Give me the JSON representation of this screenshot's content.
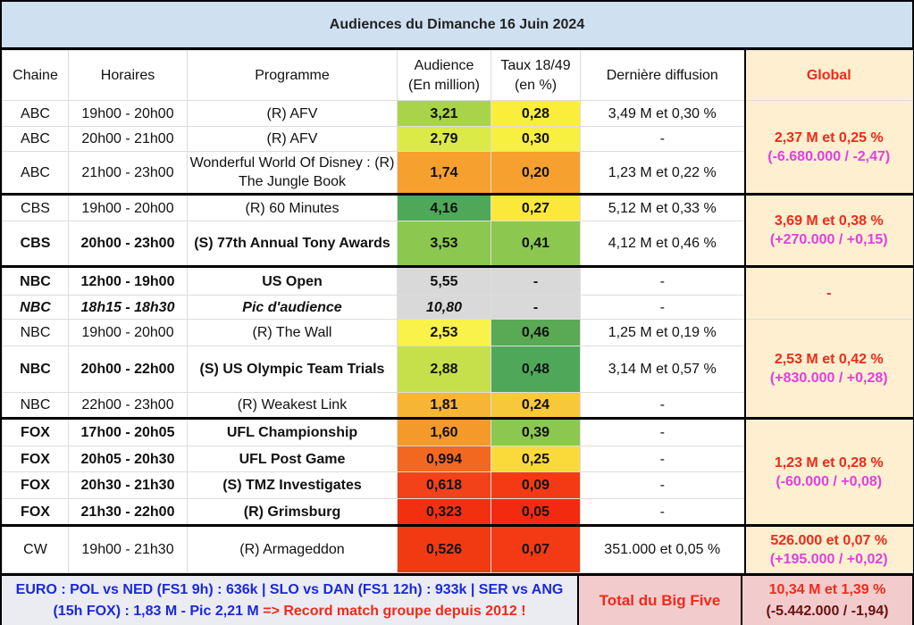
{
  "title": "Audiences du Dimanche 16 Juin 2024",
  "headers": {
    "chaine": "Chaine",
    "horaires": "Horaires",
    "programme": "Programme",
    "audience1": "Audience",
    "audience2": "(En million)",
    "taux1": "Taux 18/49",
    "taux2": "(en %)",
    "derniere": "Dernière diffusion",
    "global": "Global"
  },
  "rows": [
    {
      "chaine": "ABC",
      "horaires": "19h00 - 20h00",
      "programme": "(R) AFV",
      "audience": "3,21",
      "audience_color": "#a9d44a",
      "taux": "0,28",
      "taux_color": "#fbee3a",
      "derniere": "3,49 M et 0,30 %"
    },
    {
      "chaine": "ABC",
      "horaires": "20h00 - 21h00",
      "programme": "(R) AFV",
      "audience": "2,79",
      "audience_color": "#dcea48",
      "taux": "0,30",
      "taux_color": "#f8f040",
      "derniere": "-"
    },
    {
      "chaine": "ABC",
      "horaires": "21h00 - 23h00",
      "programme": "Wonderful World Of Disney : (R) The Jungle Book",
      "audience": "1,74",
      "audience_color": "#f6a030",
      "taux": "0,20",
      "taux_color": "#f6a030",
      "derniere": "1,23 M et 0,22 %"
    },
    {
      "chaine": "CBS",
      "horaires": "19h00 - 20h00",
      "programme": "(R) 60 Minutes",
      "audience": "4,16",
      "audience_color": "#4fa85a",
      "taux": "0,27",
      "taux_color": "#fbe83a",
      "derniere": "5,12 M et 0,33 %"
    },
    {
      "chaine": "CBS",
      "horaires": "20h00 - 23h00",
      "programme": "(S) 77th Annual Tony Awards",
      "audience": "3,53",
      "audience_color": "#8cc850",
      "taux": "0,41",
      "taux_color": "#8cc850",
      "derniere": "4,12 M et 0,46 %",
      "bold": true
    },
    {
      "chaine": "NBC",
      "horaires": "12h00 - 19h00",
      "programme": "US Open",
      "audience": "5,55",
      "audience_color": "#d9d9d9",
      "taux": "-",
      "taux_color": "#d9d9d9",
      "derniere": "-",
      "bold": true
    },
    {
      "chaine": "NBC",
      "horaires": "18h15 - 18h30",
      "programme": "Pic d'audience",
      "audience": "10,80",
      "audience_color": "#d9d9d9",
      "taux": "-",
      "taux_color": "#d9d9d9",
      "derniere": "-",
      "bold": true,
      "italic": true
    },
    {
      "chaine": "NBC",
      "horaires": "19h00 - 20h00",
      "programme": "(R) The Wall",
      "audience": "2,53",
      "audience_color": "#f9f24a",
      "taux": "0,46",
      "taux_color": "#5aa955",
      "derniere": "1,25 M et 0,19 %"
    },
    {
      "chaine": "NBC",
      "horaires": "20h00 - 22h00",
      "programme": "(S) US Olympic Team Trials",
      "audience": "2,88",
      "audience_color": "#c6e04c",
      "taux": "0,48",
      "taux_color": "#4fa85a",
      "derniere": "3,14 M et 0,57 %",
      "bold": true
    },
    {
      "chaine": "NBC",
      "horaires": "22h00 - 23h00",
      "programme": "(R) Weakest Link",
      "audience": "1,81",
      "audience_color": "#f7b535",
      "taux": "0,24",
      "taux_color": "#f7c83a",
      "derniere": "-"
    },
    {
      "chaine": "FOX",
      "horaires": "17h00 - 20h05",
      "programme": "UFL Championship",
      "audience": "1,60",
      "audience_color": "#f49a2a",
      "taux": "0,39",
      "taux_color": "#8cc850",
      "derniere": "-",
      "bold": true
    },
    {
      "chaine": "FOX",
      "horaires": "20h05 - 20h30",
      "programme": "UFL Post Game",
      "audience": "0,994",
      "audience_color": "#f36820",
      "taux": "0,25",
      "taux_color": "#f9da3a",
      "derniere": "-",
      "bold": true
    },
    {
      "chaine": "FOX",
      "horaires": "20h30 - 21h30",
      "programme": "(S) TMZ Investigates",
      "audience": "0,618",
      "audience_color": "#f2421a",
      "taux": "0,09",
      "taux_color": "#f33a15",
      "derniere": "-",
      "bold": true
    },
    {
      "chaine": "FOX",
      "horaires": "21h30 - 22h00",
      "programme": "(R) Grimsburg",
      "audience": "0,323",
      "audience_color": "#f23010",
      "taux": "0,05",
      "taux_color": "#f32a10",
      "derniere": "-",
      "bold": true
    },
    {
      "chaine": "CW",
      "horaires": "19h00 - 21h30",
      "programme": "(R) Armageddon",
      "audience": "0,526",
      "audience_color": "#f23a12",
      "taux": "0,07",
      "taux_color": "#f33a15",
      "derniere": "351.000 et 0,05 %"
    }
  ],
  "globals": [
    {
      "start": 0,
      "span": 3,
      "line1": "2,37 M et 0,25 %",
      "line2": "(-6.680.000 / -2,47)"
    },
    {
      "start": 3,
      "span": 2,
      "line1": "3,69 M et 0,38 %",
      "line2": "(+270.000 / +0,15)"
    },
    {
      "start": 5,
      "span": 2,
      "line1": "-",
      "line2": ""
    },
    {
      "start": 7,
      "span": 3,
      "line1": "2,53 M et 0,42 %",
      "line2": "(+830.000 / +0,28)"
    },
    {
      "start": 10,
      "span": 4,
      "line1": "1,23 M et 0,28 %",
      "line2": "(-60.000 / +0,08)"
    },
    {
      "start": 14,
      "span": 1,
      "line1": "526.000 et 0,07 %",
      "line2": "(+195.000 / +0,02)"
    }
  ],
  "footer": {
    "euro": "EURO : POL vs NED (FS1 9h) : 636k | SLO vs DAN (FS1 12h) : 933k | SER vs ANG (15h FOX) : 1,83 M - Pic 2,21 M",
    "record": "=> Record match groupe depuis 2012 !",
    "big_five_label": "Total du Big Five",
    "big_five_line1": "10,34 M et 1,39 %",
    "big_five_line2": "(-5.442.000 / -1,94)"
  }
}
